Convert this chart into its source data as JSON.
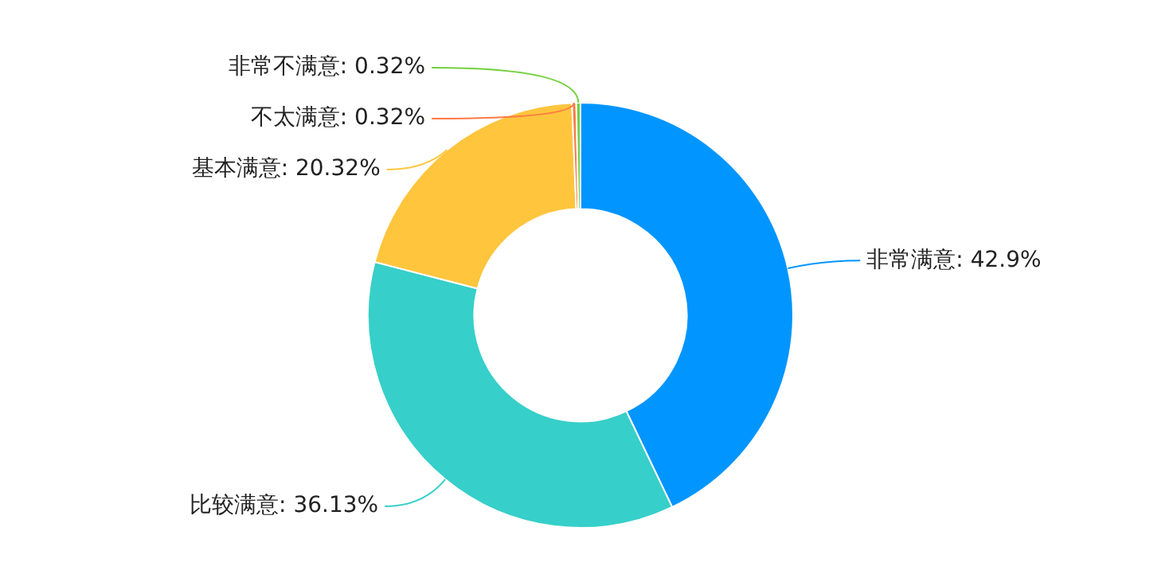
{
  "chart_data": {
    "type": "donut",
    "categories": [
      "非常满意",
      "比较满意",
      "基本满意",
      "不太满意",
      "非常不满意"
    ],
    "values": [
      42.9,
      36.13,
      20.32,
      0.32,
      0.32
    ],
    "value_labels": [
      "42.9%",
      "36.13%",
      "20.32%",
      "0.32%",
      "0.32%"
    ],
    "colors": [
      "#0095ff",
      "#36cfc9",
      "#ffc53d",
      "#ff7a45",
      "#73d13d"
    ],
    "legend": false
  }
}
